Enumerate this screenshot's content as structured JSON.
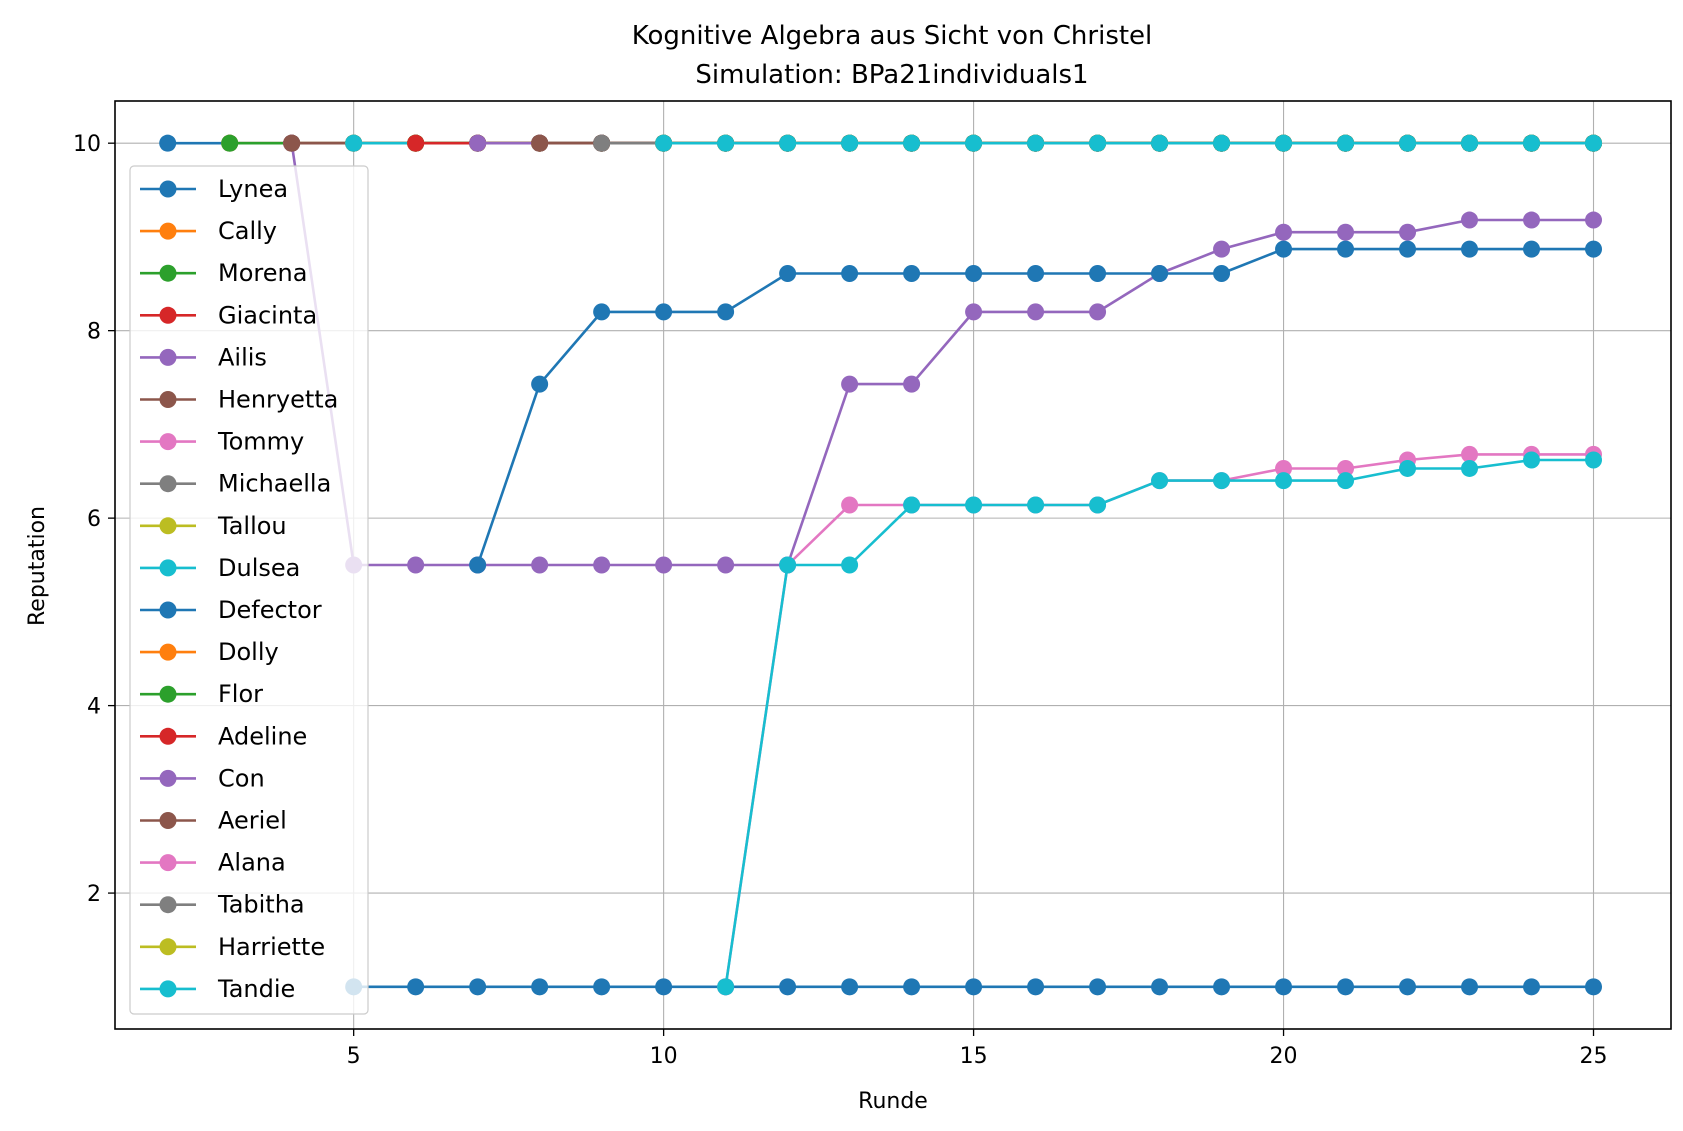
{
  "chart_data": {
    "type": "line",
    "title": "Kognitive Algebra aus Sicht von Christel",
    "subtitle": "Simulation: BPa21individuals1",
    "xlabel": "Runde",
    "ylabel": "Reputation",
    "xlim": [
      1.15,
      26.25
    ],
    "ylim": [
      0.55,
      10.45
    ],
    "xticks": [
      5,
      10,
      15,
      20,
      25
    ],
    "yticks": [
      2,
      4,
      6,
      8,
      10
    ],
    "grid": true,
    "legend_position": "left",
    "series": [
      {
        "name": "Lynea",
        "color": "#1f77b4",
        "x": [
          2,
          3,
          4,
          5,
          6,
          7,
          8,
          9,
          10,
          11,
          12,
          13,
          14,
          15,
          16,
          17,
          18,
          19,
          20,
          21,
          22,
          23,
          24,
          25
        ],
        "y": [
          10,
          10,
          10,
          10,
          10,
          10,
          10,
          10,
          10,
          10,
          10,
          10,
          10,
          10,
          10,
          10,
          10,
          10,
          10,
          10,
          10,
          10,
          10,
          10
        ]
      },
      {
        "name": "Cally",
        "color": "#ff7f0e",
        "x": [
          3,
          4,
          5,
          6,
          7,
          8,
          9,
          10,
          11,
          12,
          13,
          14,
          15,
          16,
          17,
          18,
          19,
          20,
          21,
          22,
          23,
          24,
          25
        ],
        "y": [
          10,
          10,
          10,
          10,
          10,
          10,
          10,
          10,
          10,
          10,
          10,
          10,
          10,
          10,
          10,
          10,
          10,
          10,
          10,
          10,
          10,
          10,
          10
        ]
      },
      {
        "name": "Morena",
        "color": "#2ca02c",
        "x": [
          3,
          4,
          5,
          6,
          7,
          8,
          9,
          10,
          11,
          12,
          13,
          14,
          15,
          16,
          17,
          18,
          19,
          20,
          21,
          22,
          23,
          24,
          25
        ],
        "y": [
          10,
          10,
          10,
          10,
          10,
          10,
          10,
          10,
          10,
          10,
          10,
          10,
          10,
          10,
          10,
          10,
          10,
          10,
          10,
          10,
          10,
          10,
          10
        ]
      },
      {
        "name": "Giacinta",
        "color": "#d62728",
        "x": [
          4,
          5,
          6,
          7,
          8,
          9,
          10,
          11,
          12,
          13,
          14,
          15,
          16,
          17,
          18,
          19,
          20,
          21,
          22,
          23,
          24,
          25
        ],
        "y": [
          10,
          10,
          10,
          10,
          10,
          10,
          10,
          10,
          10,
          10,
          10,
          10,
          10,
          10,
          10,
          10,
          10,
          10,
          10,
          10,
          10,
          10
        ]
      },
      {
        "name": "Ailis",
        "color": "#9467bd",
        "x": [
          4,
          5,
          6,
          7,
          8,
          9,
          10,
          11,
          12,
          13,
          14,
          15,
          16,
          17,
          18,
          19,
          20,
          21,
          22,
          23,
          24,
          25
        ],
        "y": [
          10,
          5.5,
          5.5,
          5.5,
          5.5,
          5.5,
          5.5,
          5.5,
          5.5,
          7.43,
          7.43,
          8.2,
          8.2,
          8.2,
          8.61,
          8.87,
          9.05,
          9.05,
          9.05,
          9.18,
          9.18,
          9.18
        ]
      },
      {
        "name": "Henryetta",
        "color": "#8c564b",
        "x": [
          4,
          5,
          6,
          7,
          8,
          9,
          10,
          11,
          12,
          13,
          14,
          15,
          16,
          17,
          18,
          19,
          20,
          21,
          22,
          23,
          24,
          25
        ],
        "y": [
          10,
          10,
          10,
          10,
          10,
          10,
          10,
          10,
          10,
          10,
          10,
          10,
          10,
          10,
          10,
          10,
          10,
          10,
          10,
          10,
          10,
          10
        ]
      },
      {
        "name": "Tommy",
        "color": "#e377c2",
        "x": [
          5,
          6,
          7,
          8,
          9,
          10,
          11,
          12,
          13,
          14,
          15,
          16,
          17,
          18,
          19,
          20,
          21,
          22,
          23,
          24,
          25
        ],
        "y": [
          10,
          10,
          10,
          10,
          10,
          10,
          10,
          10,
          10,
          10,
          10,
          10,
          10,
          10,
          10,
          10,
          10,
          10,
          10,
          10,
          10
        ]
      },
      {
        "name": "Michaella",
        "color": "#7f7f7f",
        "x": [
          5,
          6,
          7,
          8,
          9,
          10,
          11,
          12,
          13,
          14,
          15,
          16,
          17,
          18,
          19,
          20,
          21,
          22,
          23,
          24,
          25
        ],
        "y": [
          10,
          10,
          10,
          10,
          10,
          10,
          10,
          10,
          10,
          10,
          10,
          10,
          10,
          10,
          10,
          10,
          10,
          10,
          10,
          10,
          10
        ]
      },
      {
        "name": "Tallou",
        "color": "#bcbd22",
        "x": [
          5,
          6,
          7,
          8,
          9,
          10,
          11,
          12,
          13,
          14,
          15,
          16,
          17,
          18,
          19,
          20,
          21,
          22,
          23,
          24,
          25
        ],
        "y": [
          10,
          10,
          10,
          10,
          10,
          10,
          10,
          10,
          10,
          10,
          10,
          10,
          10,
          10,
          10,
          10,
          10,
          10,
          10,
          10,
          10
        ]
      },
      {
        "name": "Dulsea",
        "color": "#17becf",
        "x": [
          5,
          6,
          7,
          8,
          9,
          10,
          11,
          12,
          13,
          14,
          15,
          16,
          17,
          18,
          19,
          20,
          21,
          22,
          23,
          24,
          25
        ],
        "y": [
          10,
          10,
          10,
          10,
          10,
          10,
          10,
          10,
          10,
          10,
          10,
          10,
          10,
          10,
          10,
          10,
          10,
          10,
          10,
          10,
          10
        ]
      },
      {
        "name": "Defector",
        "color": "#1f77b4",
        "x": [
          5,
          6,
          7,
          8,
          9,
          10,
          11,
          12,
          13,
          14,
          15,
          16,
          17,
          18,
          19,
          20,
          21,
          22,
          23,
          24,
          25
        ],
        "y": [
          1,
          1,
          1,
          1,
          1,
          1,
          1,
          1,
          1,
          1,
          1,
          1,
          1,
          1,
          1,
          1,
          1,
          1,
          1,
          1,
          1
        ]
      },
      {
        "name": "Dolly",
        "color": "#ff7f0e",
        "x": [
          6,
          7,
          8,
          9,
          10,
          11,
          12,
          13,
          14,
          15,
          16,
          17,
          18,
          19,
          20,
          21,
          22,
          23,
          24,
          25
        ],
        "y": [
          10,
          10,
          10,
          10,
          10,
          10,
          10,
          10,
          10,
          10,
          10,
          10,
          10,
          10,
          10,
          10,
          10,
          10,
          10,
          10
        ]
      },
      {
        "name": "Flor",
        "color": "#2ca02c",
        "x": [
          6,
          7,
          8,
          9,
          10,
          11,
          12,
          13,
          14,
          15,
          16,
          17,
          18,
          19,
          20,
          21,
          22,
          23,
          24,
          25
        ],
        "y": [
          10,
          10,
          10,
          10,
          10,
          10,
          10,
          10,
          10,
          10,
          10,
          10,
          10,
          10,
          10,
          10,
          10,
          10,
          10,
          10
        ]
      },
      {
        "name": "Adeline",
        "color": "#d62728",
        "x": [
          6,
          7,
          8,
          9,
          10,
          11,
          12,
          13,
          14,
          15,
          16,
          17,
          18,
          19,
          20,
          21,
          22,
          23,
          24,
          25
        ],
        "y": [
          10,
          10,
          10,
          10,
          10,
          10,
          10,
          10,
          10,
          10,
          10,
          10,
          10,
          10,
          10,
          10,
          10,
          10,
          10,
          10
        ]
      },
      {
        "name": "Con",
        "color": "#9467bd",
        "x": [
          7,
          8,
          9,
          10,
          11,
          12,
          13,
          14,
          15,
          16,
          17,
          18,
          19,
          20,
          21,
          22,
          23,
          24,
          25
        ],
        "y": [
          10,
          10,
          10,
          10,
          10,
          10,
          10,
          10,
          10,
          10,
          10,
          10,
          10,
          10,
          10,
          10,
          10,
          10,
          10
        ]
      },
      {
        "name": "Aeriel",
        "color": "#8c564b",
        "x": [
          8,
          9,
          10,
          11,
          12,
          13,
          14,
          15,
          16,
          17,
          18,
          19,
          20,
          21,
          22,
          23,
          24,
          25
        ],
        "y": [
          10,
          10,
          10,
          10,
          10,
          10,
          10,
          10,
          10,
          10,
          10,
          10,
          10,
          10,
          10,
          10,
          10,
          10
        ]
      },
      {
        "name": "Alana",
        "color": "#e377c2",
        "x": [
          11,
          12,
          13,
          14,
          15,
          16,
          17,
          18,
          19,
          20,
          21,
          22,
          23,
          24,
          25
        ],
        "y": [
          1,
          5.5,
          6.14,
          6.14,
          6.14,
          6.14,
          6.14,
          6.4,
          6.4,
          6.53,
          6.53,
          6.62,
          6.68,
          6.68,
          6.68
        ]
      },
      {
        "name": "Tabitha",
        "color": "#7f7f7f",
        "x": [
          9,
          10,
          11,
          12,
          13,
          14,
          15,
          16,
          17,
          18,
          19,
          20,
          21,
          22,
          23,
          24,
          25
        ],
        "y": [
          10,
          10,
          10,
          10,
          10,
          10,
          10,
          10,
          10,
          10,
          10,
          10,
          10,
          10,
          10,
          10,
          10
        ]
      },
      {
        "name": "Harriette",
        "color": "#bcbd22",
        "x": [
          10,
          11,
          12,
          13,
          14,
          15,
          16,
          17,
          18,
          19,
          20,
          21,
          22,
          23,
          24,
          25
        ],
        "y": [
          10,
          10,
          10,
          10,
          10,
          10,
          10,
          10,
          10,
          10,
          10,
          10,
          10,
          10,
          10,
          10
        ]
      },
      {
        "name": "Tandie",
        "color": "#17becf",
        "x": [
          11,
          12,
          13,
          14,
          15,
          16,
          17,
          18,
          19,
          20,
          21,
          22,
          23,
          24,
          25
        ],
        "y": [
          1,
          5.5,
          5.5,
          6.14,
          6.14,
          6.14,
          6.14,
          6.4,
          6.4,
          6.4,
          6.4,
          6.53,
          6.53,
          6.62,
          6.62
        ]
      },
      {
        "name": "",
        "color": "#1f77b4",
        "x": [
          7,
          8,
          9,
          10,
          11,
          12,
          13,
          14,
          15,
          16,
          17,
          18,
          19,
          20,
          21,
          22,
          23,
          24,
          25
        ],
        "y": [
          5.5,
          7.43,
          8.2,
          8.2,
          8.2,
          8.61,
          8.61,
          8.61,
          8.61,
          8.61,
          8.61,
          8.61,
          8.61,
          8.87,
          8.87,
          8.87,
          8.87,
          8.87,
          8.87
        ]
      },
      {
        "name": "",
        "color": "#17becf",
        "x": [
          10,
          11,
          12,
          13,
          14,
          15,
          16,
          17,
          18,
          19,
          20,
          21,
          22,
          23,
          24,
          25
        ],
        "y": [
          10,
          10,
          10,
          10,
          10,
          10,
          10,
          10,
          10,
          10,
          10,
          10,
          10,
          10,
          10,
          10
        ]
      }
    ]
  }
}
